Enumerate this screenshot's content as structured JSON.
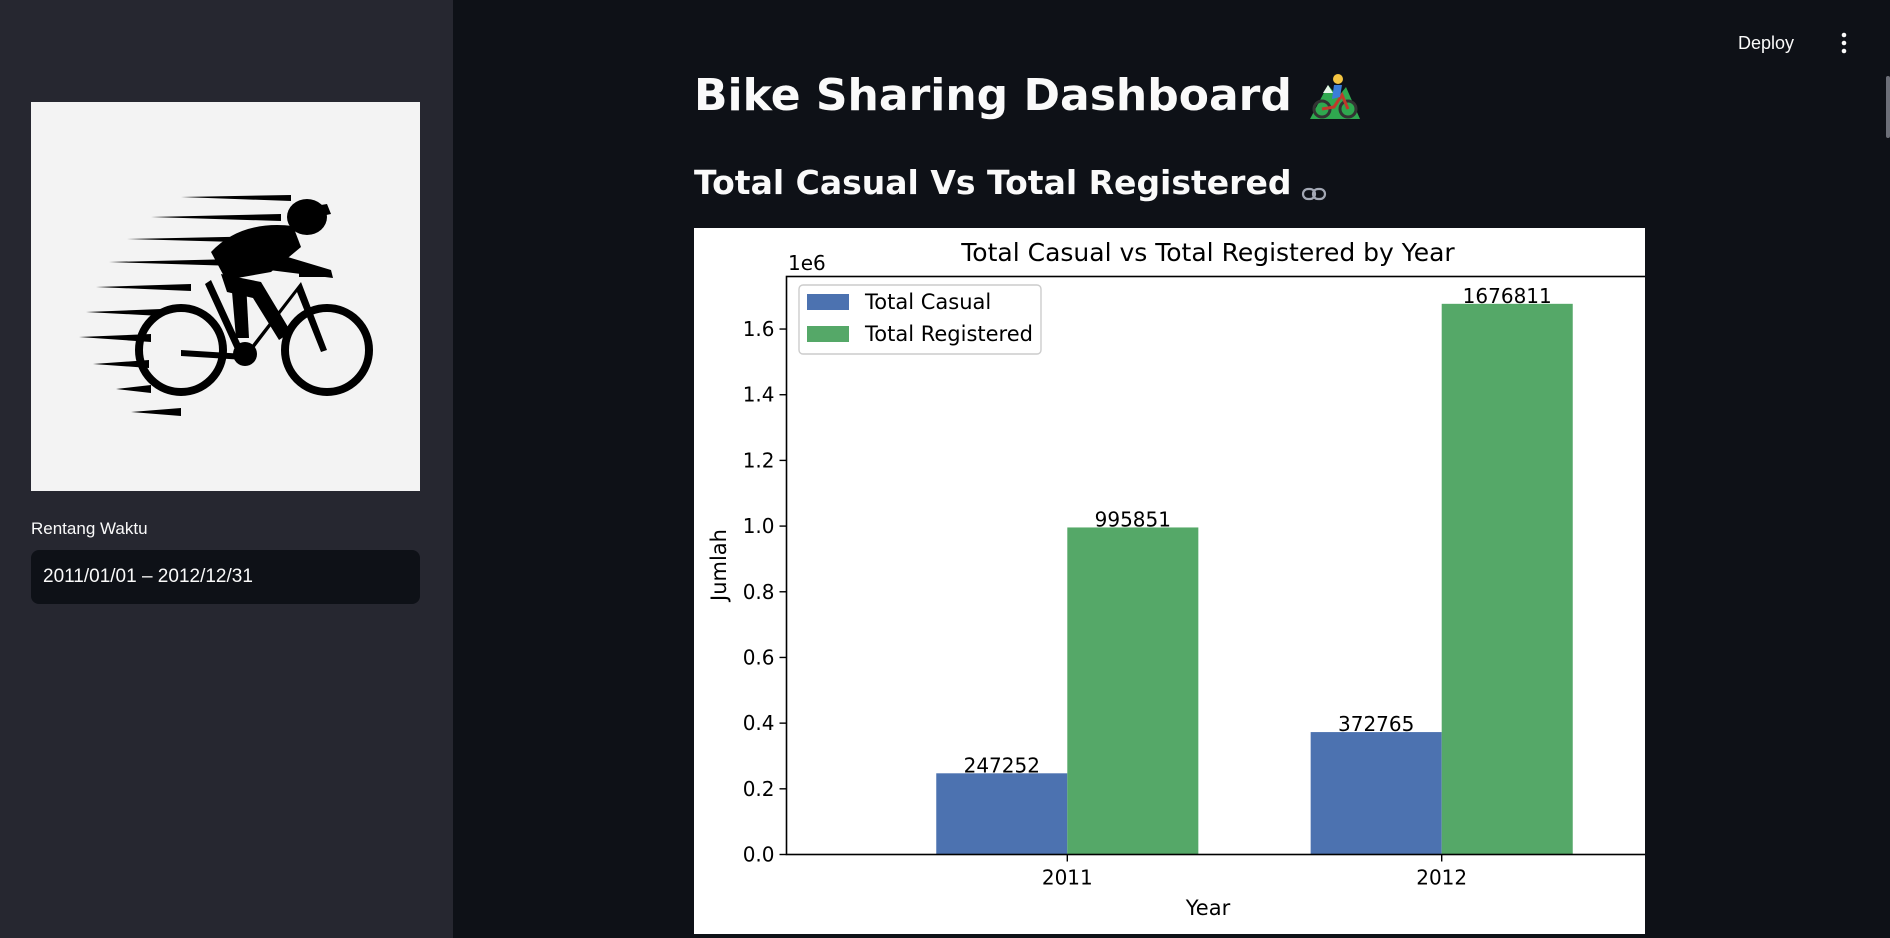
{
  "sidebar": {
    "logo_icon": "cyclist-logo",
    "date_range_label": "Rentang Waktu",
    "date_range_value": "2011/01/01 – 2012/12/31"
  },
  "header": {
    "deploy_label": "Deploy",
    "menu_icon": "vertical-ellipsis-icon"
  },
  "main": {
    "title": "Bike Sharing Dashboard",
    "title_emoji": "mountain-biker-emoji",
    "section_heading": "Total Casual Vs Total Registered",
    "anchor_icon": "link-icon"
  },
  "chart_data": {
    "type": "bar",
    "title": "Total Casual vs Total Registered by Year",
    "xlabel": "Year",
    "ylabel": "Jumlah",
    "y_scale_label": "1e6",
    "categories": [
      "2011",
      "2012"
    ],
    "series": [
      {
        "name": "Total Casual",
        "color": "#4c72b0",
        "values": [
          247252,
          372765
        ]
      },
      {
        "name": "Total Registered",
        "color": "#55a868",
        "values": [
          995851,
          1676811
        ]
      }
    ],
    "ylim": [
      0,
      1760000
    ],
    "yticks": [
      0.0,
      0.2,
      0.4,
      0.6,
      0.8,
      1.0,
      1.2,
      1.4,
      1.6
    ],
    "ytick_labels": [
      "0.0",
      "0.2",
      "0.4",
      "0.6",
      "0.8",
      "1.0",
      "1.2",
      "1.4",
      "1.6"
    ],
    "legend_position": "upper-left",
    "grid": false,
    "data_labels": true
  }
}
